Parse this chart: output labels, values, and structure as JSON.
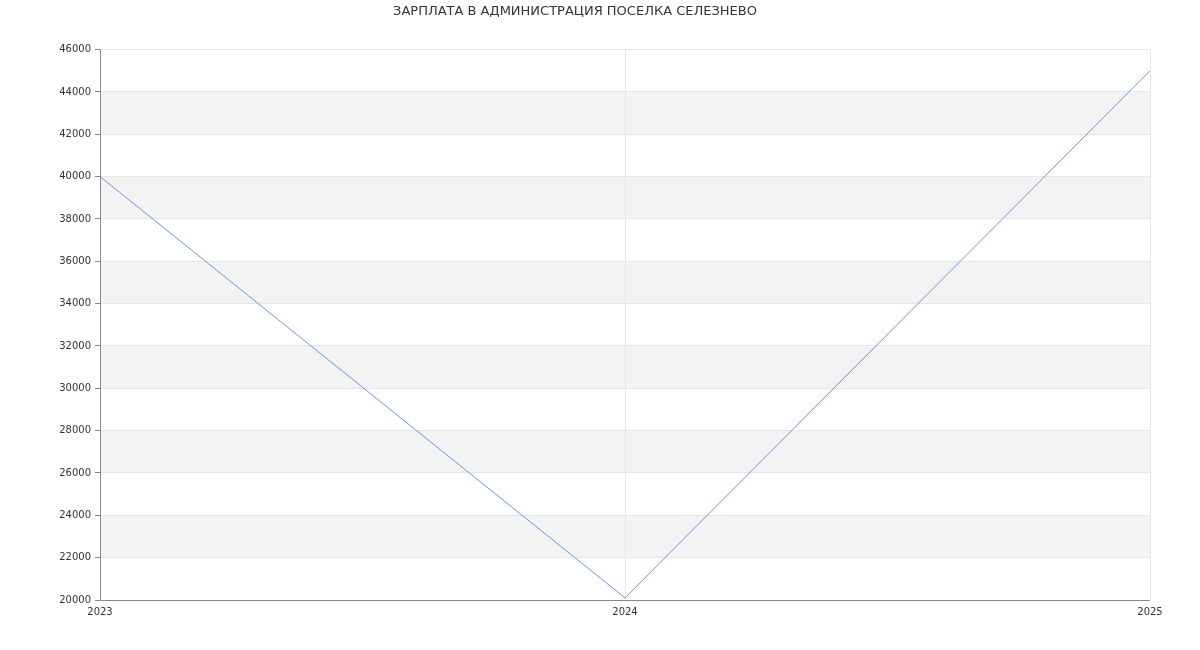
{
  "chart_data": {
    "type": "line",
    "title": "ЗАРПЛАТА В АДМИНИСТРАЦИЯ ПОСЕЛКА СЕЛЕЗНЕВО",
    "x": [
      2023,
      2024,
      2025
    ],
    "values": [
      40000,
      20100,
      45000
    ],
    "color": "#6495ed",
    "xlim": [
      2023,
      2025
    ],
    "xticks": [
      2023,
      2024,
      2025
    ],
    "ylim": [
      20000,
      46000
    ],
    "yticks": [
      20000,
      22000,
      24000,
      26000,
      28000,
      30000,
      32000,
      34000,
      36000,
      38000,
      40000,
      42000,
      44000,
      46000
    ],
    "grid": true,
    "marker": "none",
    "line_style": "solid"
  }
}
